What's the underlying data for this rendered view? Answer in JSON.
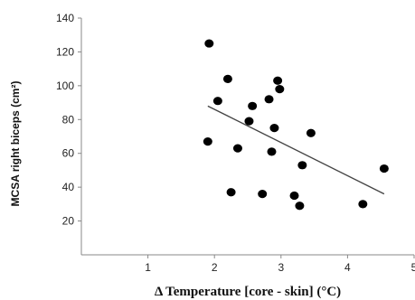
{
  "chart_data": {
    "type": "scatter",
    "xlabel": "Δ Temperature [core - skin] (°C)",
    "ylabel": "MCSA right biceps (cm²)",
    "xlim": [
      0,
      5
    ],
    "ylim": [
      0,
      140
    ],
    "x_ticks": [
      1,
      2,
      3,
      4,
      5
    ],
    "y_ticks": [
      20,
      40,
      60,
      80,
      100,
      120,
      140
    ],
    "grid": false,
    "legend": "none",
    "colors": {
      "points": "#000000",
      "trendline": "#444444",
      "axis": "#888888",
      "text": "#222222"
    },
    "points": [
      {
        "x": 1.92,
        "y": 125
      },
      {
        "x": 1.9,
        "y": 67
      },
      {
        "x": 2.05,
        "y": 91
      },
      {
        "x": 2.2,
        "y": 104
      },
      {
        "x": 2.25,
        "y": 37
      },
      {
        "x": 2.35,
        "y": 63
      },
      {
        "x": 2.52,
        "y": 79
      },
      {
        "x": 2.57,
        "y": 88
      },
      {
        "x": 2.72,
        "y": 36
      },
      {
        "x": 2.82,
        "y": 92
      },
      {
        "x": 2.86,
        "y": 61
      },
      {
        "x": 2.9,
        "y": 75
      },
      {
        "x": 2.95,
        "y": 103
      },
      {
        "x": 2.98,
        "y": 98
      },
      {
        "x": 3.2,
        "y": 35
      },
      {
        "x": 3.28,
        "y": 29
      },
      {
        "x": 3.32,
        "y": 53
      },
      {
        "x": 3.45,
        "y": 72
      },
      {
        "x": 4.23,
        "y": 30
      },
      {
        "x": 4.55,
        "y": 51
      }
    ],
    "trendline": {
      "x": [
        1.9,
        4.55
      ],
      "y": [
        88,
        36
      ]
    }
  }
}
